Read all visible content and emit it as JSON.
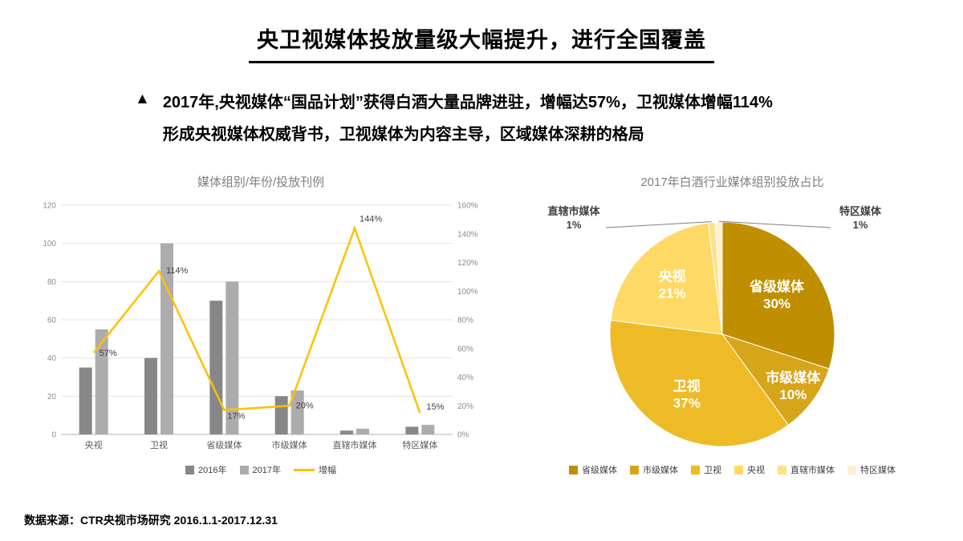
{
  "title": "央卫视媒体投放量级大幅提升，进行全国覆盖",
  "bullet": {
    "marker": "▲",
    "line1": "2017年,央视媒体“国品计划”获得白酒大量品牌进驻，增幅达57%，卫视媒体增幅114%",
    "line2": "形成央视媒体权威背书，卫视媒体为内容主导，区域媒体深耕的格局"
  },
  "source": "数据来源：CTR央视市场研究  2016.1.1-2017.12.31",
  "chart_data": [
    {
      "type": "bar",
      "title": "媒体组别/年份/投放刊例",
      "categories": [
        "央视",
        "卫视",
        "省级媒体",
        "市级媒体",
        "直辖市媒体",
        "特区媒体"
      ],
      "series": [
        {
          "name": "2016年",
          "kind": "bar",
          "color": "#878787",
          "values": [
            35,
            40,
            70,
            20,
            2,
            4
          ]
        },
        {
          "name": "2017年",
          "kind": "bar",
          "color": "#acacac",
          "values": [
            55,
            100,
            80,
            23,
            3,
            5
          ]
        },
        {
          "name": "增幅",
          "kind": "line",
          "color": "#FFC000",
          "values": [
            57,
            114,
            17,
            20,
            144,
            15
          ],
          "labels": [
            "57%",
            "114%",
            "17%",
            "20%",
            "144%",
            "15%"
          ]
        }
      ],
      "left_axis": {
        "min": 0,
        "max": 120,
        "step": 20
      },
      "right_axis": {
        "min": 0,
        "max": 160,
        "step": 20,
        "suffix": "%"
      },
      "grid": true,
      "legend_position": "bottom"
    },
    {
      "type": "pie",
      "title": "2017年白酒行业媒体组别投放占比",
      "slices": [
        {
          "label": "省级媒体",
          "value": 30,
          "color": "#BF8F00",
          "callout": false
        },
        {
          "label": "市级媒体",
          "value": 10,
          "color": "#D6A51A",
          "callout": false
        },
        {
          "label": "卫视",
          "value": 37,
          "color": "#EDBB26",
          "callout": false
        },
        {
          "label": "央视",
          "value": 21,
          "color": "#FFD966",
          "callout": false
        },
        {
          "label": "直辖市媒体",
          "value": 1,
          "color": "#FFE18A",
          "callout": true
        },
        {
          "label": "特区媒体",
          "value": 1,
          "color": "#FFF1CD",
          "callout": true
        }
      ],
      "legend_position": "bottom"
    }
  ]
}
